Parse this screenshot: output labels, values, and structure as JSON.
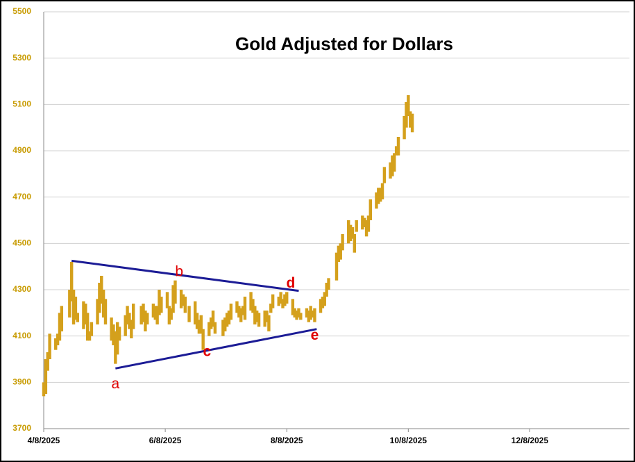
{
  "chart_data": {
    "type": "range_bar",
    "title": "Gold Adjusted for Dollars",
    "color": "#d4a01c",
    "grid": true,
    "ylim": [
      3700,
      5500
    ],
    "yticks": [
      3700,
      3900,
      4100,
      4300,
      4500,
      4700,
      4900,
      5100,
      5300,
      5500
    ],
    "xlim": [
      "2025-04-08",
      "2026-01-27"
    ],
    "xticks": [
      {
        "value": "2025-04-08",
        "label": "4/8/2025"
      },
      {
        "value": "2025-06-08",
        "label": "6/8/2025"
      },
      {
        "value": "2025-08-08",
        "label": "8/8/2025"
      },
      {
        "value": "2025-10-08",
        "label": "10/8/2025"
      },
      {
        "value": "2025-12-08",
        "label": "12/8/2025"
      }
    ],
    "x": [
      "2025-04-08",
      "2025-04-09",
      "2025-04-10",
      "2025-04-11",
      "2025-04-14",
      "2025-04-15",
      "2025-04-16",
      "2025-04-17",
      "2025-04-21",
      "2025-04-22",
      "2025-04-23",
      "2025-04-24",
      "2025-04-25",
      "2025-04-28",
      "2025-04-29",
      "2025-04-30",
      "2025-05-01",
      "2025-05-02",
      "2025-05-05",
      "2025-05-06",
      "2025-05-07",
      "2025-05-08",
      "2025-05-09",
      "2025-05-12",
      "2025-05-13",
      "2025-05-14",
      "2025-05-15",
      "2025-05-16",
      "2025-05-19",
      "2025-05-20",
      "2025-05-21",
      "2025-05-22",
      "2025-05-23",
      "2025-05-27",
      "2025-05-28",
      "2025-05-29",
      "2025-05-30",
      "2025-06-02",
      "2025-06-03",
      "2025-06-04",
      "2025-06-05",
      "2025-06-06",
      "2025-06-09",
      "2025-06-10",
      "2025-06-11",
      "2025-06-12",
      "2025-06-13",
      "2025-06-16",
      "2025-06-17",
      "2025-06-18",
      "2025-06-20",
      "2025-06-23",
      "2025-06-24",
      "2025-06-25",
      "2025-06-26",
      "2025-06-27",
      "2025-06-30",
      "2025-07-01",
      "2025-07-02",
      "2025-07-03",
      "2025-07-07",
      "2025-07-08",
      "2025-07-09",
      "2025-07-10",
      "2025-07-11",
      "2025-07-14",
      "2025-07-15",
      "2025-07-16",
      "2025-07-17",
      "2025-07-18",
      "2025-07-21",
      "2025-07-22",
      "2025-07-23",
      "2025-07-24",
      "2025-07-25",
      "2025-07-28",
      "2025-07-29",
      "2025-07-30",
      "2025-07-31",
      "2025-08-01",
      "2025-08-04",
      "2025-08-05",
      "2025-08-06",
      "2025-08-07",
      "2025-08-08",
      "2025-08-11",
      "2025-08-12",
      "2025-08-13",
      "2025-08-14",
      "2025-08-15",
      "2025-08-18",
      "2025-08-19",
      "2025-08-20",
      "2025-08-21",
      "2025-08-22",
      "2025-08-25",
      "2025-08-26",
      "2025-08-27",
      "2025-08-28",
      "2025-08-29",
      "2025-09-02",
      "2025-09-03",
      "2025-09-04",
      "2025-09-05",
      "2025-09-08",
      "2025-09-09",
      "2025-09-10",
      "2025-09-11",
      "2025-09-12",
      "2025-09-15",
      "2025-09-16",
      "2025-09-17",
      "2025-09-18",
      "2025-09-19",
      "2025-09-22",
      "2025-09-23",
      "2025-09-24",
      "2025-09-25",
      "2025-09-26",
      "2025-09-29",
      "2025-09-30",
      "2025-10-01",
      "2025-10-02",
      "2025-10-03",
      "2025-10-06",
      "2025-10-07",
      "2025-10-08",
      "2025-10-09",
      "2025-10-10"
    ],
    "low": [
      3840,
      3850,
      3950,
      4000,
      4040,
      4060,
      4080,
      4120,
      4180,
      4250,
      4150,
      4170,
      4160,
      4130,
      4150,
      4080,
      4080,
      4100,
      4150,
      4200,
      4240,
      4180,
      4150,
      4080,
      4060,
      3980,
      4020,
      4080,
      4100,
      4150,
      4130,
      4090,
      4130,
      4150,
      4160,
      4120,
      4150,
      4180,
      4170,
      4150,
      4190,
      4200,
      4220,
      4150,
      4170,
      4200,
      4240,
      4220,
      4230,
      4200,
      4160,
      4150,
      4130,
      4110,
      4110,
      4040,
      4100,
      4130,
      4140,
      4110,
      4100,
      4120,
      4140,
      4150,
      4170,
      4200,
      4180,
      4160,
      4190,
      4170,
      4210,
      4200,
      4150,
      4160,
      4140,
      4140,
      4160,
      4120,
      4200,
      4220,
      4230,
      4240,
      4220,
      4230,
      4240,
      4190,
      4180,
      4170,
      4180,
      4170,
      4180,
      4160,
      4170,
      4180,
      4160,
      4200,
      4220,
      4230,
      4270,
      4300,
      4340,
      4420,
      4430,
      4470,
      4500,
      4510,
      4520,
      4460,
      4550,
      4560,
      4570,
      4530,
      4550,
      4600,
      4650,
      4670,
      4680,
      4690,
      4760,
      4780,
      4790,
      4810,
      4880,
      4880,
      4950,
      5000,
      5050,
      5000,
      4980
    ],
    "high": [
      3900,
      4000,
      4030,
      4110,
      4090,
      4110,
      4200,
      4230,
      4300,
      4420,
      4300,
      4270,
      4200,
      4250,
      4240,
      4200,
      4120,
      4160,
      4260,
      4330,
      4360,
      4300,
      4260,
      4180,
      4150,
      4120,
      4160,
      4140,
      4190,
      4230,
      4200,
      4170,
      4240,
      4230,
      4240,
      4210,
      4200,
      4240,
      4230,
      4230,
      4300,
      4270,
      4290,
      4230,
      4220,
      4320,
      4340,
      4300,
      4280,
      4270,
      4230,
      4250,
      4200,
      4170,
      4190,
      4130,
      4160,
      4180,
      4210,
      4160,
      4170,
      4180,
      4200,
      4210,
      4240,
      4250,
      4230,
      4220,
      4230,
      4270,
      4290,
      4260,
      4230,
      4210,
      4200,
      4210,
      4210,
      4190,
      4240,
      4280,
      4270,
      4290,
      4260,
      4280,
      4290,
      4260,
      4220,
      4210,
      4220,
      4200,
      4220,
      4210,
      4230,
      4210,
      4220,
      4260,
      4270,
      4290,
      4330,
      4350,
      4460,
      4490,
      4500,
      4540,
      4600,
      4580,
      4570,
      4540,
      4600,
      4620,
      4610,
      4600,
      4620,
      4690,
      4720,
      4740,
      4740,
      4760,
      4830,
      4850,
      4880,
      4890,
      4920,
      4960,
      5050,
      5110,
      5140,
      5070,
      5060
    ],
    "lines": [
      {
        "color": "#1c1c96",
        "x": [
          "2025-04-22",
          "2025-08-14"
        ],
        "y": [
          4425,
          4295
        ]
      },
      {
        "color": "#1c1c96",
        "x": [
          "2025-05-14",
          "2025-08-23"
        ],
        "y": [
          3960,
          4130
        ]
      }
    ],
    "annotations": [
      {
        "text": "a",
        "x": "2025-05-14",
        "y": 3890,
        "color": "#e00000",
        "bold": false
      },
      {
        "text": "b",
        "x": "2025-06-15",
        "y": 4375,
        "color": "#e00000",
        "bold": false
      },
      {
        "text": "c",
        "x": "2025-06-29",
        "y": 4030,
        "color": "#e00000",
        "bold": true
      },
      {
        "text": "d",
        "x": "2025-08-10",
        "y": 4325,
        "color": "#e00000",
        "bold": true
      },
      {
        "text": "e",
        "x": "2025-08-22",
        "y": 4100,
        "color": "#e00000",
        "bold": true
      }
    ]
  }
}
